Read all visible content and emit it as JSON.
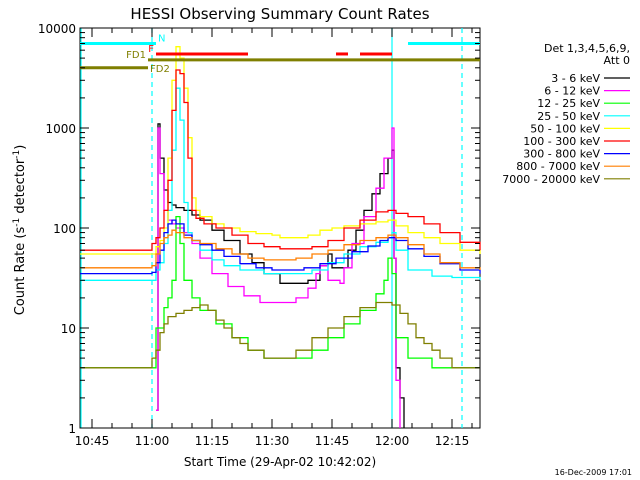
{
  "chart_data": {
    "type": "line",
    "title": "HESSI Observing Summary Count Rates",
    "xlabel": "Start Time (29-Apr-02 10:42:02)",
    "ylabel_main": "Count Rate (s",
    "ylabel_sup": "-1",
    "ylabel_tail": " detector",
    "ylabel_close": ")",
    "x_unit": "minutes since 10:42:02 start (axis labelled in UT hh:mm)",
    "xlim": [
      0,
      100
    ],
    "ylim": [
      1,
      10000
    ],
    "yscale": "log",
    "x_ticks": [
      {
        "x": 3,
        "label": "10:45"
      },
      {
        "x": 18,
        "label": "11:00"
      },
      {
        "x": 33,
        "label": "11:15"
      },
      {
        "x": 48,
        "label": "11:30"
      },
      {
        "x": 63,
        "label": "11:45"
      },
      {
        "x": 78,
        "label": "12:00"
      },
      {
        "x": 93,
        "label": "12:15"
      }
    ],
    "y_ticks": [
      {
        "y": 1,
        "label": "1"
      },
      {
        "y": 10,
        "label": "10"
      },
      {
        "y": 100,
        "label": "100"
      },
      {
        "y": 1000,
        "label": "1000"
      },
      {
        "y": 10000,
        "label": "10000"
      }
    ],
    "legend_title": [
      "Det 1,3,4,5,6,9,",
      "Att 0"
    ],
    "legend_position": "right",
    "series": [
      {
        "name": "3 - 6 keV",
        "color": "#000000",
        "points": [
          [
            19,
            1.5
          ],
          [
            19.5,
            1100
          ],
          [
            20,
            500
          ],
          [
            21,
            240
          ],
          [
            22,
            180
          ],
          [
            23,
            170
          ],
          [
            24,
            160
          ],
          [
            26,
            150
          ],
          [
            28,
            135
          ],
          [
            30,
            120
          ],
          [
            33,
            95
          ],
          [
            36,
            75
          ],
          [
            40,
            55
          ],
          [
            43,
            45
          ],
          [
            46,
            35
          ],
          [
            50,
            28
          ],
          [
            54,
            28
          ],
          [
            57,
            30
          ],
          [
            60,
            42
          ],
          [
            62,
            55
          ],
          [
            63,
            40
          ],
          [
            65,
            40
          ],
          [
            67,
            60
          ],
          [
            69,
            95
          ],
          [
            71,
            150
          ],
          [
            73,
            220
          ],
          [
            75,
            350
          ],
          [
            77,
            500
          ],
          [
            78,
            600
          ],
          [
            78.5,
            50
          ],
          [
            79,
            4
          ],
          [
            80,
            2
          ],
          [
            81,
            1
          ]
        ]
      },
      {
        "name": "6 - 12 keV",
        "color": "#ff00ff",
        "points": [
          [
            19,
            1.5
          ],
          [
            19.5,
            1000
          ],
          [
            20,
            350
          ],
          [
            21,
            150
          ],
          [
            22,
            120
          ],
          [
            23,
            110
          ],
          [
            24,
            100
          ],
          [
            26,
            90
          ],
          [
            28,
            70
          ],
          [
            30,
            50
          ],
          [
            33,
            35
          ],
          [
            37,
            26
          ],
          [
            41,
            21
          ],
          [
            45,
            18
          ],
          [
            50,
            18
          ],
          [
            54,
            20
          ],
          [
            57,
            25
          ],
          [
            59,
            35
          ],
          [
            60,
            42
          ],
          [
            62,
            30
          ],
          [
            65,
            28
          ],
          [
            66,
            40
          ],
          [
            68,
            70
          ],
          [
            71,
            130
          ],
          [
            74,
            250
          ],
          [
            76,
            500
          ],
          [
            78,
            1000
          ],
          [
            78.5,
            50
          ],
          [
            79,
            3
          ],
          [
            80,
            1
          ]
        ]
      },
      {
        "name": "12 - 25 keV",
        "color": "#00ff00",
        "points": [
          [
            0,
            4
          ],
          [
            5,
            4
          ],
          [
            10,
            4
          ],
          [
            15,
            4
          ],
          [
            18,
            4
          ],
          [
            19,
            10
          ],
          [
            20,
            10
          ],
          [
            21,
            16
          ],
          [
            22,
            20
          ],
          [
            23,
            30
          ],
          [
            24,
            130
          ],
          [
            25,
            70
          ],
          [
            26,
            30
          ],
          [
            28,
            20
          ],
          [
            30,
            15
          ],
          [
            34,
            11
          ],
          [
            38,
            8
          ],
          [
            42,
            6
          ],
          [
            46,
            5
          ],
          [
            50,
            5
          ],
          [
            54,
            5
          ],
          [
            58,
            6
          ],
          [
            62,
            8
          ],
          [
            66,
            11
          ],
          [
            70,
            15
          ],
          [
            74,
            22
          ],
          [
            76,
            30
          ],
          [
            77,
            50
          ],
          [
            78,
            35
          ],
          [
            79,
            8
          ],
          [
            82,
            5
          ],
          [
            88,
            4
          ],
          [
            93,
            4
          ],
          [
            100,
            4
          ]
        ]
      },
      {
        "name": "25 - 50 keV",
        "color": "#00ffff",
        "points": [
          [
            0,
            30
          ],
          [
            10,
            30
          ],
          [
            18,
            30
          ],
          [
            19,
            38
          ],
          [
            20,
            45
          ],
          [
            21,
            70
          ],
          [
            22,
            150
          ],
          [
            23,
            600
          ],
          [
            24,
            2500
          ],
          [
            25,
            1200
          ],
          [
            26,
            180
          ],
          [
            27,
            90
          ],
          [
            28,
            75
          ],
          [
            30,
            60
          ],
          [
            33,
            48
          ],
          [
            36,
            42
          ],
          [
            40,
            38
          ],
          [
            46,
            35
          ],
          [
            52,
            35
          ],
          [
            58,
            38
          ],
          [
            62,
            45
          ],
          [
            66,
            55
          ],
          [
            70,
            65
          ],
          [
            74,
            72
          ],
          [
            77,
            80
          ],
          [
            78,
            90
          ],
          [
            79,
            60
          ],
          [
            82,
            38
          ],
          [
            88,
            33
          ],
          [
            93,
            32
          ],
          [
            100,
            30
          ]
        ]
      },
      {
        "name": "50 - 100 keV",
        "color": "#ffff00",
        "points": [
          [
            0,
            55
          ],
          [
            10,
            55
          ],
          [
            18,
            55
          ],
          [
            19,
            65
          ],
          [
            20,
            75
          ],
          [
            21,
            100
          ],
          [
            22,
            500
          ],
          [
            23,
            3000
          ],
          [
            24,
            6500
          ],
          [
            25,
            5000
          ],
          [
            26,
            2500
          ],
          [
            27,
            800
          ],
          [
            28,
            200
          ],
          [
            29,
            150
          ],
          [
            30,
            130
          ],
          [
            33,
            110
          ],
          [
            36,
            100
          ],
          [
            40,
            92
          ],
          [
            44,
            88
          ],
          [
            48,
            85
          ],
          [
            50,
            80
          ],
          [
            53,
            80
          ],
          [
            57,
            85
          ],
          [
            60,
            95
          ],
          [
            63,
            100
          ],
          [
            66,
            105
          ],
          [
            70,
            110
          ],
          [
            74,
            115
          ],
          [
            77,
            120
          ],
          [
            79,
            105
          ],
          [
            82,
            90
          ],
          [
            86,
            80
          ],
          [
            90,
            70
          ],
          [
            95,
            60
          ],
          [
            100,
            55
          ]
        ]
      },
      {
        "name": "100 - 300 keV",
        "color": "#ff0000",
        "points": [
          [
            0,
            60
          ],
          [
            10,
            60
          ],
          [
            18,
            70
          ],
          [
            19,
            80
          ],
          [
            20,
            100
          ],
          [
            21,
            150
          ],
          [
            22,
            300
          ],
          [
            23,
            1500
          ],
          [
            24,
            3800
          ],
          [
            25,
            3500
          ],
          [
            26,
            1800
          ],
          [
            27,
            500
          ],
          [
            28,
            150
          ],
          [
            29,
            125
          ],
          [
            31,
            110
          ],
          [
            34,
            100
          ],
          [
            38,
            85
          ],
          [
            42,
            70
          ],
          [
            46,
            65
          ],
          [
            50,
            62
          ],
          [
            54,
            62
          ],
          [
            58,
            65
          ],
          [
            62,
            75
          ],
          [
            66,
            100
          ],
          [
            70,
            120
          ],
          [
            74,
            145
          ],
          [
            77,
            150
          ],
          [
            79,
            140
          ],
          [
            82,
            130
          ],
          [
            86,
            110
          ],
          [
            90,
            90
          ],
          [
            95,
            72
          ],
          [
            100,
            60
          ]
        ]
      },
      {
        "name": "300 - 800 keV",
        "color": "#0000ff",
        "points": [
          [
            0,
            35
          ],
          [
            10,
            35
          ],
          [
            18,
            36
          ],
          [
            19,
            45
          ],
          [
            20,
            60
          ],
          [
            21,
            90
          ],
          [
            22,
            110
          ],
          [
            23,
            120
          ],
          [
            24,
            110
          ],
          [
            26,
            85
          ],
          [
            28,
            75
          ],
          [
            30,
            68
          ],
          [
            33,
            60
          ],
          [
            36,
            52
          ],
          [
            40,
            44
          ],
          [
            44,
            40
          ],
          [
            48,
            38
          ],
          [
            52,
            38
          ],
          [
            56,
            40
          ],
          [
            60,
            44
          ],
          [
            64,
            50
          ],
          [
            68,
            58
          ],
          [
            72,
            66
          ],
          [
            75,
            75
          ],
          [
            77,
            80
          ],
          [
            79,
            75
          ],
          [
            82,
            62
          ],
          [
            86,
            52
          ],
          [
            90,
            44
          ],
          [
            95,
            38
          ],
          [
            100,
            35
          ]
        ]
      },
      {
        "name": "800 - 7000 keV",
        "color": "#ff7f00",
        "points": [
          [
            0,
            40
          ],
          [
            10,
            40
          ],
          [
            18,
            42
          ],
          [
            19,
            55
          ],
          [
            20,
            70
          ],
          [
            21,
            80
          ],
          [
            22,
            85
          ],
          [
            23,
            95
          ],
          [
            24,
            90
          ],
          [
            26,
            80
          ],
          [
            28,
            75
          ],
          [
            30,
            70
          ],
          [
            34,
            62
          ],
          [
            38,
            55
          ],
          [
            42,
            50
          ],
          [
            46,
            48
          ],
          [
            50,
            48
          ],
          [
            54,
            50
          ],
          [
            58,
            55
          ],
          [
            62,
            60
          ],
          [
            66,
            68
          ],
          [
            70,
            75
          ],
          [
            74,
            80
          ],
          [
            77,
            85
          ],
          [
            79,
            80
          ],
          [
            82,
            68
          ],
          [
            86,
            55
          ],
          [
            90,
            45
          ],
          [
            95,
            40
          ],
          [
            100,
            38
          ]
        ]
      },
      {
        "name": "7000 - 20000 keV",
        "color": "#7f7f00",
        "points": [
          [
            0,
            4
          ],
          [
            5,
            4
          ],
          [
            10,
            4
          ],
          [
            15,
            4
          ],
          [
            18,
            5
          ],
          [
            19,
            6
          ],
          [
            20,
            9
          ],
          [
            21,
            11
          ],
          [
            22,
            13
          ],
          [
            24,
            14
          ],
          [
            26,
            15
          ],
          [
            28,
            16
          ],
          [
            30,
            17
          ],
          [
            32,
            15
          ],
          [
            34,
            12
          ],
          [
            36,
            10
          ],
          [
            38,
            8
          ],
          [
            40,
            7
          ],
          [
            42,
            6
          ],
          [
            46,
            5
          ],
          [
            50,
            5
          ],
          [
            54,
            6
          ],
          [
            58,
            8
          ],
          [
            62,
            10
          ],
          [
            66,
            13
          ],
          [
            70,
            16
          ],
          [
            74,
            18
          ],
          [
            76,
            18
          ],
          [
            78,
            17
          ],
          [
            80,
            14
          ],
          [
            82,
            11
          ],
          [
            84,
            8
          ],
          [
            86,
            7
          ],
          [
            88,
            6
          ],
          [
            90,
            5
          ],
          [
            93,
            4
          ],
          [
            100,
            4
          ]
        ]
      }
    ],
    "flags": [
      {
        "label": "N",
        "color": "#00ffff",
        "segments": [
          [
            0,
            19
          ],
          [
            82,
            100
          ]
        ],
        "y": 7000
      },
      {
        "label": "F",
        "color": "#ff0000",
        "segments": [
          [
            19,
            42
          ],
          [
            64,
            67
          ],
          [
            70,
            78
          ]
        ],
        "y": 5500
      },
      {
        "label": "FD1",
        "color": "#7f7f00",
        "segments": [
          [
            17,
            100
          ]
        ],
        "y": 4800
      },
      {
        "label": "FD2",
        "color": "#7f7f00",
        "segments": [
          [
            0,
            17
          ]
        ],
        "y": 4000
      }
    ],
    "vertical_lines": [
      {
        "x": 18.0,
        "color": "#00ffff",
        "style": "dashed"
      },
      {
        "x": 78.0,
        "color": "#00ffff",
        "style": "solid"
      },
      {
        "x": 95.5,
        "color": "#00ffff",
        "style": "dashed"
      }
    ],
    "footer": "16-Dec-2009 17:01"
  }
}
